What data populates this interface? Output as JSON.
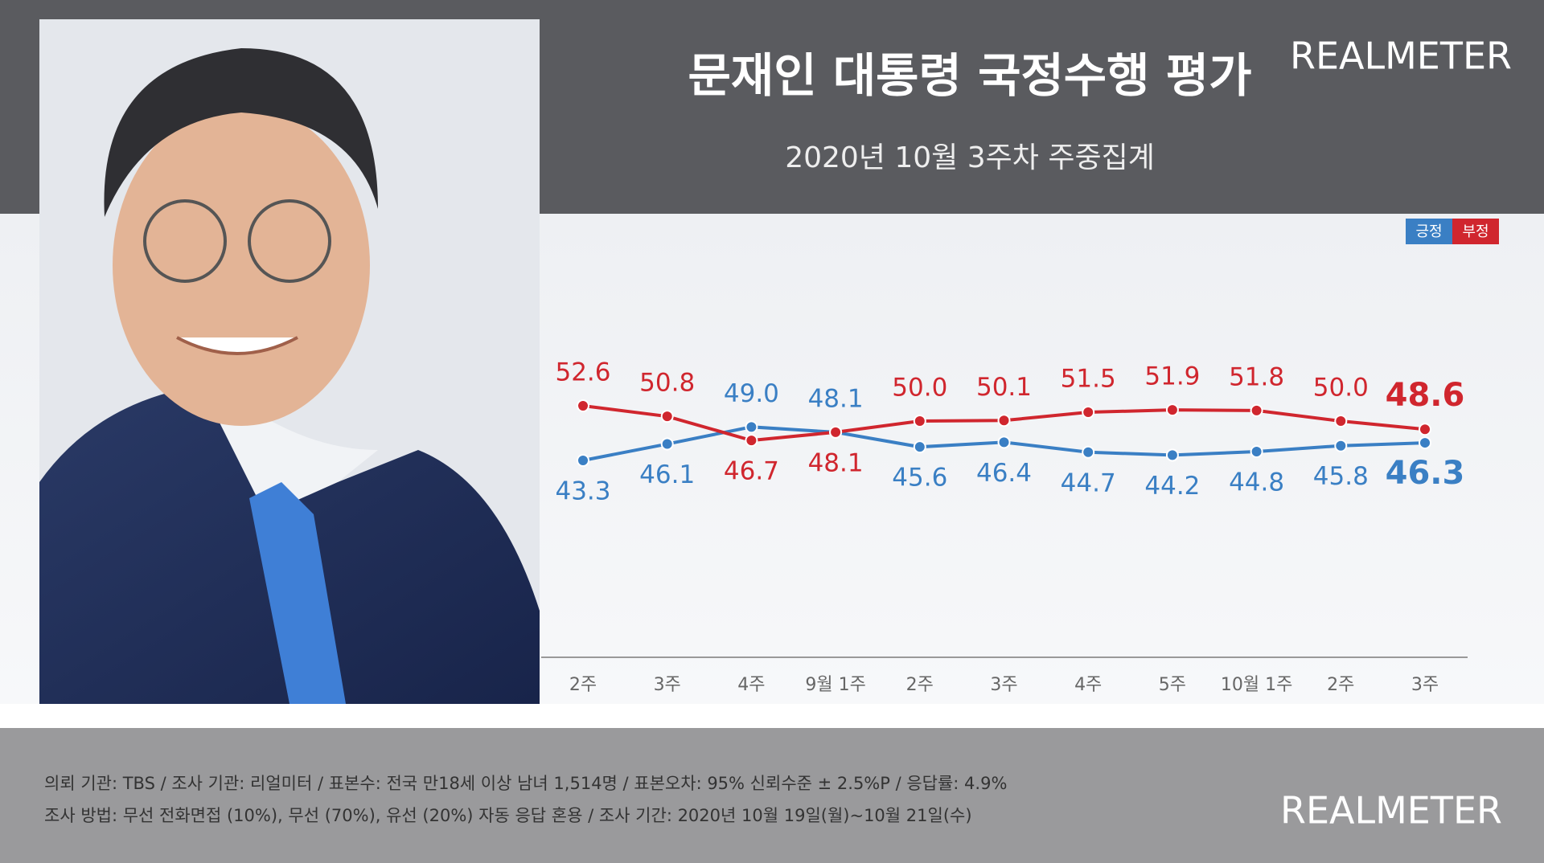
{
  "chart_data": {
    "type": "line",
    "title": "문재인 대통령 국정수행 평가",
    "subtitle": "2020년 10월 3주차 주중집계",
    "brand": "REALMETER",
    "categories": [
      "2주",
      "3주",
      "4주",
      "9월 1주",
      "2주",
      "3주",
      "4주",
      "5주",
      "10월 1주",
      "2주",
      "3주"
    ],
    "series": [
      {
        "name": "긍정",
        "color": "#3a7fc4",
        "values": [
          43.3,
          46.1,
          49.0,
          48.1,
          45.6,
          46.4,
          44.7,
          44.2,
          44.8,
          45.8,
          46.3
        ],
        "value_labels": [
          "43.3",
          "46.1",
          "49.0",
          "48.1",
          "45.6",
          "46.4",
          "44.7",
          "44.2",
          "44.8",
          "45.8",
          "46.3"
        ]
      },
      {
        "name": "부정",
        "color": "#d0262e",
        "values": [
          52.6,
          50.8,
          46.7,
          48.1,
          50.0,
          50.1,
          51.5,
          51.9,
          51.8,
          50.0,
          48.6
        ],
        "value_labels": [
          "52.6",
          "50.8",
          "46.7",
          "48.1",
          "50.0",
          "50.1",
          "51.5",
          "51.9",
          "51.8",
          "50.0",
          "48.6"
        ]
      }
    ],
    "notes": [
      "의뢰 기관: TBS / 조사 기관: 리얼미터 / 표본수: 전국 만18세 이상 남녀 1,514명 / 표본오차: 95% 신뢰수준 ± 2.5%P / 응답률: 4.9%",
      "조사 방법: 무선 전화면접 (10%), 무선 (70%), 유선 (20%)  자동 응답 혼용 / 조사 기간: 2020년 10월 19일(월)~10월 21일(수)"
    ]
  }
}
